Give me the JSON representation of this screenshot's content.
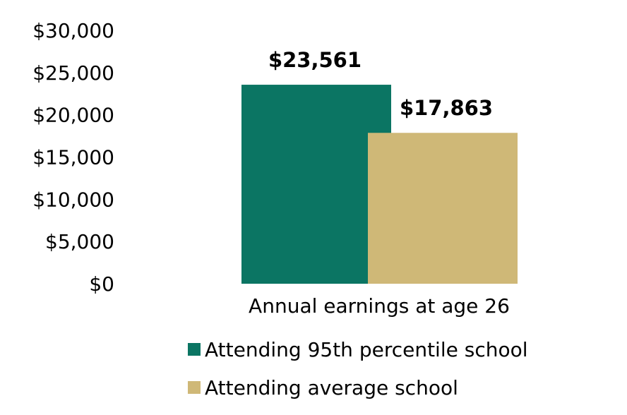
{
  "chart_data": {
    "type": "bar",
    "title": "",
    "xlabel": "",
    "ylabel": "",
    "categories": [
      "Annual earnings at age 26"
    ],
    "ylim": [
      0,
      30000
    ],
    "yticks": [
      0,
      5000,
      10000,
      15000,
      20000,
      25000,
      30000
    ],
    "ytick_labels": [
      "$0",
      "$5,000",
      "$10,000",
      "$15,000",
      "$20,000",
      "$25,000",
      "$30,000"
    ],
    "grid": false,
    "legend_position": "bottom",
    "series": [
      {
        "name": "Attending 95th percentile school",
        "values": [
          23561
        ],
        "data_label": "$23,561",
        "color": "#0b7563"
      },
      {
        "name": "Attending average school",
        "values": [
          17863
        ],
        "data_label": "$17,863",
        "color": "#cfb877"
      }
    ]
  }
}
